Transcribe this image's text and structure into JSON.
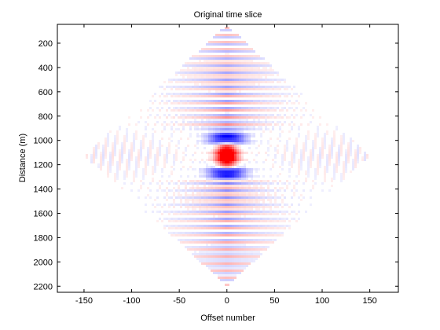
{
  "chart_data": {
    "type": "heatmap",
    "title": "Original time slice",
    "xlabel": "Offset number",
    "ylabel": "Distance (m)",
    "xlim": [
      -178,
      180
    ],
    "ylim": [
      2250,
      45
    ],
    "x_ticks": [
      -150,
      -100,
      -50,
      0,
      50,
      100,
      150
    ],
    "y_ticks": [
      200,
      400,
      600,
      800,
      1000,
      1200,
      1400,
      1600,
      1800,
      2000,
      2200
    ],
    "colormap": "red-white-blue (seismic, positive red / negative blue)",
    "data_extent": {
      "shape": "diamond",
      "apex_top": {
        "x": 0,
        "y": 50
      },
      "apex_bottom": {
        "x": 0,
        "y": 2200
      },
      "left_corner": {
        "x": -150,
        "y": 1100
      },
      "right_corner": {
        "x": 150,
        "y": 1100
      }
    },
    "features": [
      {
        "description": "strong positive (red) anomaly centered near offset 0",
        "center": {
          "x": 0,
          "y": 1100
        }
      },
      {
        "description": "strong negative (blue) lobes above and below center",
        "positions": [
          {
            "x": 0,
            "y": 960
          },
          {
            "x": 0,
            "y": 1240
          }
        ]
      }
    ],
    "grid": false,
    "legend": "none",
    "colors": {
      "positive": "#e00000",
      "negative": "#0000e0",
      "background": "#ffffff",
      "axes": "#000000"
    }
  }
}
